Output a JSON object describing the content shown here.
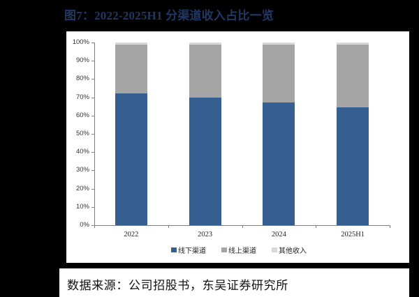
{
  "title": "图7：2022-2025H1 分渠道收入占比一览",
  "caption": "数据来源：公司招股书，东吴证券研究所",
  "colors": {
    "offline": "#365f91",
    "online": "#a5a5a5",
    "other": "#d9d9d9",
    "title": "#1f3864"
  },
  "chart_data": {
    "type": "bar",
    "stacked": true,
    "title": "图7：2022-2025H1 分渠道收入占比一览",
    "categories": [
      "2022",
      "2023",
      "2024",
      "2025H1"
    ],
    "series": [
      {
        "name": "线下渠道",
        "values": [
          72.0,
          70.0,
          67.0,
          64.5
        ]
      },
      {
        "name": "线上渠道",
        "values": [
          27.0,
          29.0,
          32.0,
          34.5
        ]
      },
      {
        "name": "其他收入",
        "values": [
          1.0,
          1.0,
          1.0,
          1.0
        ]
      }
    ],
    "xlabel": "",
    "ylabel": "",
    "ylim": [
      0,
      100
    ],
    "yticks": [
      "0%",
      "10%",
      "20%",
      "30%",
      "40%",
      "50%",
      "60%",
      "70%",
      "80%",
      "90%",
      "100%"
    ],
    "grid": false,
    "legend_position": "bottom"
  },
  "legend": [
    {
      "label": "线下渠道"
    },
    {
      "label": "线上渠道"
    },
    {
      "label": "其他收入"
    }
  ]
}
